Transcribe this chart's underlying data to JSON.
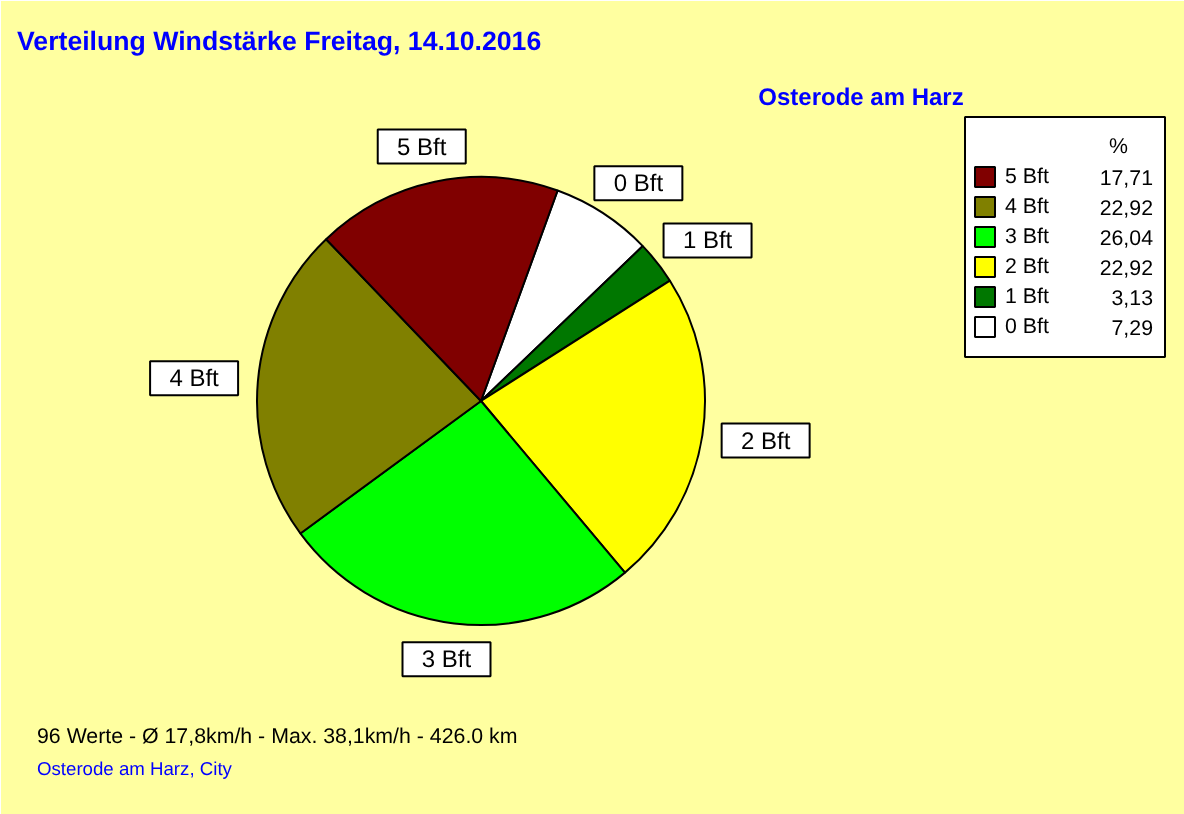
{
  "chart_data": {
    "type": "pie",
    "title": "Verteilung Windstärke  Freitag, 14.10.2016",
    "subtitle": "Osterode am Harz",
    "categories": [
      "0 Bft",
      "1 Bft",
      "2 Bft",
      "3 Bft",
      "4 Bft",
      "5 Bft"
    ],
    "values": [
      7.29,
      3.13,
      22.92,
      26.04,
      22.92,
      17.71
    ],
    "value_labels": [
      "7,29",
      "3,13",
      "22,92",
      "26,04",
      "22,92",
      "17,71"
    ],
    "colors": [
      "#ffffff",
      "#007700",
      "#ffff00",
      "#00ff00",
      "#808000",
      "#800000"
    ],
    "legend_title": "%",
    "legend": "top right",
    "annotations": [
      "96 Werte   -   Ø 17,8km/h  -  Max. 38,1km/h   -   426.0 km",
      "Osterode am Harz, City"
    ]
  }
}
